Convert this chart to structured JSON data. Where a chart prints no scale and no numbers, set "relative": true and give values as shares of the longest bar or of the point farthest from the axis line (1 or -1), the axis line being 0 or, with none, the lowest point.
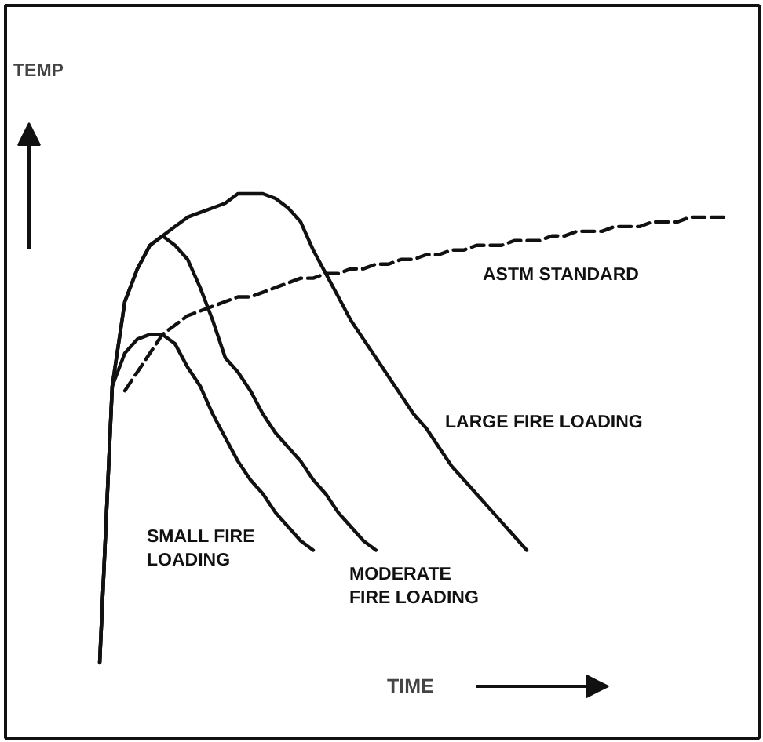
{
  "chart_data": {
    "type": "line",
    "relative": true,
    "xlabel": "TIME",
    "annotations": [
      "TEMP"
    ],
    "categories": [
      null,
      null,
      null,
      null,
      null,
      null,
      null,
      null,
      null,
      null,
      null,
      null,
      null,
      null,
      null,
      null,
      null,
      null,
      null,
      null,
      null,
      null,
      null,
      null,
      null,
      null,
      null,
      null,
      null,
      null,
      null,
      null,
      null,
      null,
      null,
      null,
      null,
      null,
      null,
      null,
      null,
      null,
      null,
      null,
      null,
      null,
      null,
      null,
      null,
      null,
      null
    ],
    "series": [
      {
        "name": "ASTM STANDARD",
        "color": "#111111",
        "line_style": "dashed",
        "values": [
          null,
          null,
          0.58,
          0.62,
          0.66,
          0.7,
          0.72,
          0.74,
          0.75,
          0.76,
          0.77,
          0.78,
          0.78,
          0.79,
          0.8,
          0.81,
          0.82,
          0.82,
          0.83,
          0.83,
          0.84,
          0.84,
          0.85,
          0.85,
          0.86,
          0.86,
          0.87,
          0.87,
          0.88,
          0.88,
          0.89,
          0.89,
          0.89,
          0.9,
          0.9,
          0.9,
          0.91,
          0.91,
          0.92,
          0.92,
          0.92,
          0.93,
          0.93,
          0.93,
          0.94,
          0.94,
          0.94,
          0.95,
          0.95,
          0.95,
          0.95
        ]
      },
      {
        "name": "LARGE FIRE LOADING",
        "color": "#111111",
        "line_style": "solid",
        "values": [
          0,
          0.59,
          0.77,
          0.84,
          0.89,
          0.91,
          0.93,
          0.95,
          0.96,
          0.97,
          0.98,
          1.0,
          1.0,
          1.0,
          0.99,
          0.97,
          0.94,
          0.88,
          0.83,
          0.78,
          0.73,
          0.69,
          0.65,
          0.61,
          0.57,
          0.53,
          0.5,
          0.46,
          0.42,
          0.39,
          0.36,
          0.33,
          0.3,
          0.27,
          0.24,
          null,
          null,
          null,
          null,
          null,
          null,
          null,
          null,
          null,
          null,
          null,
          null,
          null,
          null,
          null,
          null
        ]
      },
      {
        "name": "MODERATE\nFIRE LOADING",
        "color": "#111111",
        "line_style": "solid",
        "values": [
          0,
          0.59,
          0.77,
          0.84,
          0.89,
          0.91,
          0.89,
          0.86,
          0.8,
          0.73,
          0.65,
          0.62,
          0.58,
          0.53,
          0.49,
          0.46,
          0.43,
          0.39,
          0.36,
          0.32,
          0.29,
          0.26,
          0.24,
          null,
          null,
          null,
          null,
          null,
          null,
          null,
          null,
          null,
          null,
          null,
          null,
          null,
          null,
          null,
          null,
          null,
          null,
          null,
          null,
          null,
          null,
          null,
          null,
          null,
          null,
          null,
          null
        ]
      },
      {
        "name": "SMALL FIRE\nLOADING",
        "color": "#111111",
        "line_style": "solid",
        "values": [
          0,
          0.59,
          0.66,
          0.69,
          0.7,
          0.7,
          0.68,
          0.63,
          0.59,
          0.53,
          0.48,
          0.43,
          0.39,
          0.36,
          0.32,
          0.29,
          0.26,
          0.24,
          null,
          null,
          null,
          null,
          null,
          null,
          null,
          null,
          null,
          null,
          null,
          null,
          null,
          null,
          null,
          null,
          null,
          null,
          null,
          null,
          null,
          null,
          null,
          null,
          null,
          null,
          null,
          null,
          null,
          null,
          null,
          null,
          null
        ]
      }
    ]
  }
}
